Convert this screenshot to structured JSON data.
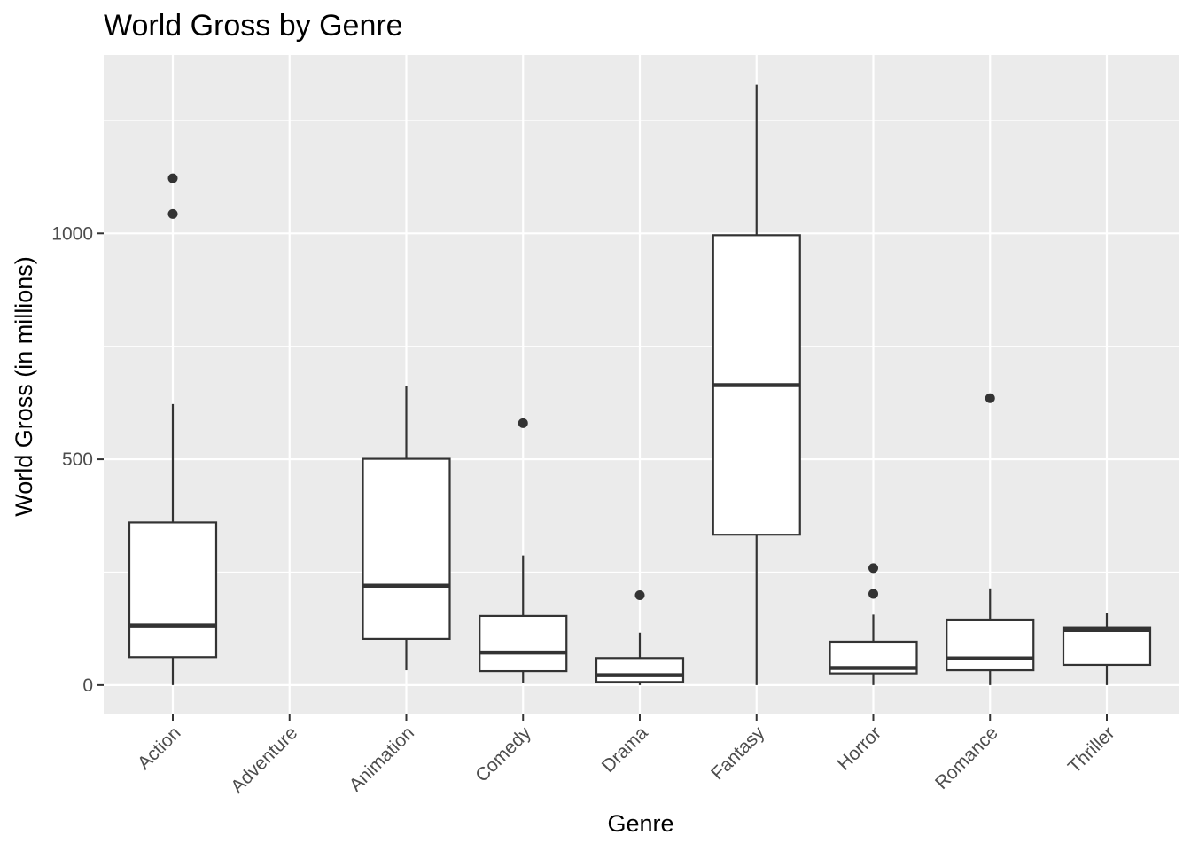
{
  "chart_data": {
    "type": "boxplot",
    "title": "World Gross by Genre",
    "xlabel": "Genre",
    "ylabel": "World Gross (in millions)",
    "ylim": [
      -65,
      1395
    ],
    "yticks": [
      0,
      500,
      1000
    ],
    "grid": true,
    "categories": [
      "Action",
      "Adventure",
      "Animation",
      "Comedy",
      "Drama",
      "Fantasy",
      "Horror",
      "Romance",
      "Thriller"
    ],
    "boxes": [
      {
        "category": "Action",
        "whisker_low": 0,
        "q1": 62,
        "median": 132,
        "q3": 360,
        "whisker_high": 622,
        "outliers": [
          1043,
          1122
        ]
      },
      {
        "category": "Adventure",
        "empty": true
      },
      {
        "category": "Animation",
        "whisker_low": 33,
        "q1": 102,
        "median": 220,
        "q3": 501,
        "whisker_high": 661,
        "outliers": []
      },
      {
        "category": "Comedy",
        "whisker_low": 5,
        "q1": 31,
        "median": 72,
        "q3": 153,
        "whisker_high": 287,
        "outliers": [
          580
        ]
      },
      {
        "category": "Drama",
        "whisker_low": 0,
        "q1": 7,
        "median": 22,
        "q3": 60,
        "whisker_high": 116,
        "outliers": [
          199
        ]
      },
      {
        "category": "Fantasy",
        "whisker_low": 0,
        "q1": 333,
        "median": 664,
        "q3": 996,
        "whisker_high": 1329,
        "outliers": []
      },
      {
        "category": "Horror",
        "whisker_low": 0,
        "q1": 26,
        "median": 38,
        "q3": 96,
        "whisker_high": 156,
        "outliers": [
          202,
          259
        ]
      },
      {
        "category": "Romance",
        "whisker_low": 0,
        "q1": 33,
        "median": 59,
        "q3": 145,
        "whisker_high": 214,
        "outliers": [
          635
        ]
      },
      {
        "category": "Thriller",
        "whisker_low": 0,
        "q1": 45,
        "median": 122,
        "q3": 128,
        "whisker_high": 160,
        "outliers": []
      }
    ],
    "colors": {
      "panel": "#EBEBEB",
      "grid": "#FFFFFF",
      "box_fill": "#FFFFFF",
      "box_line": "#333333",
      "tick": "#333333",
      "tick_label": "#4D4D4D"
    }
  }
}
